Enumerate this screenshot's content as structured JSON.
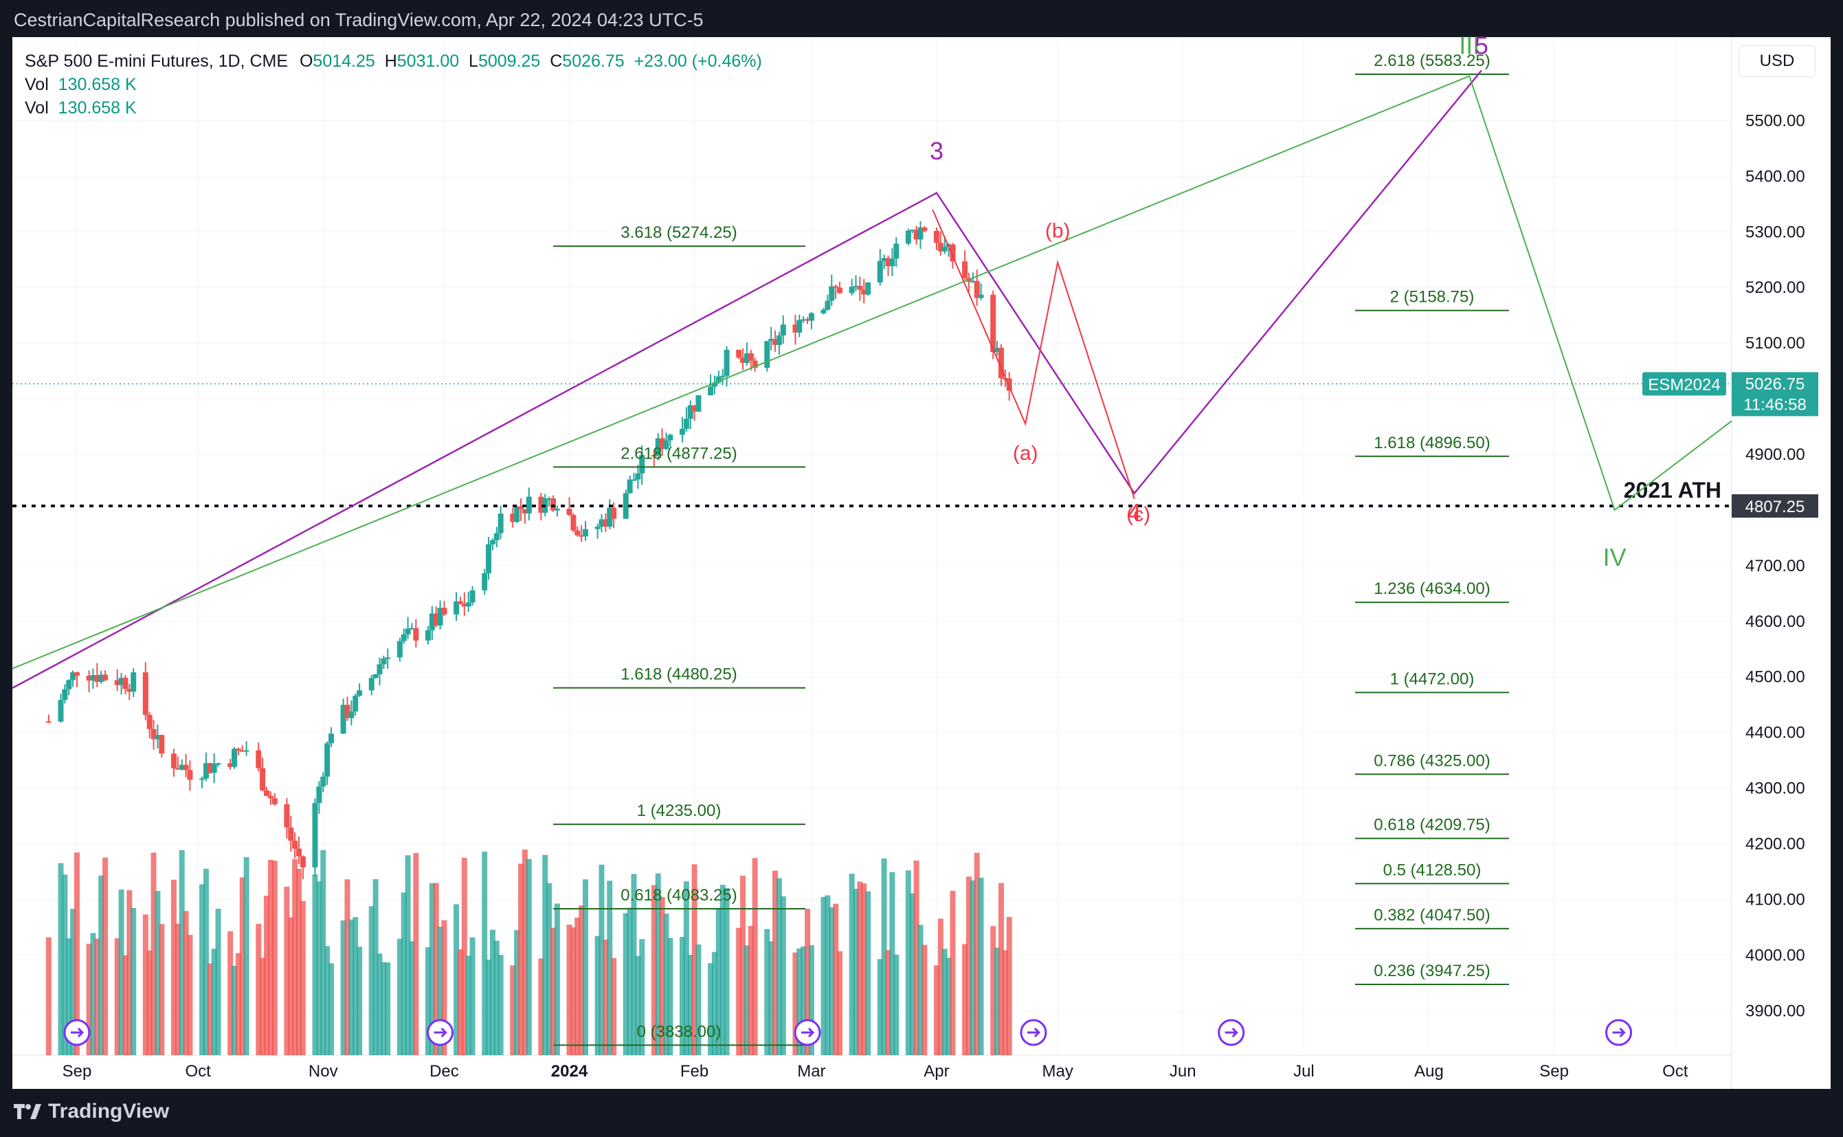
{
  "header": {
    "published_by": "CestrianCapitalResearch published on TradingView.com, Apr 22, 2024 04:23 UTC-5"
  },
  "legend": {
    "title": "S&P 500 E-mini Futures, 1D, CME",
    "o_label": "O",
    "o_value": "5014.25",
    "h_label": "H",
    "h_value": "5031.00",
    "l_label": "L",
    "l_value": "5009.25",
    "c_label": "C",
    "c_value": "5026.75",
    "change": "+23.00 (+0.46%)",
    "vol1_label": "Vol",
    "vol1_value": "130.658 K",
    "vol2_label": "Vol",
    "vol2_value": "130.658 K"
  },
  "currency_button": "USD",
  "footer": {
    "brand": "TradingView"
  },
  "colors": {
    "up": "#26a69a",
    "down": "#ef5350",
    "fib": "#1f6b1f",
    "purple": "#9c27b0",
    "green": "#4caf50",
    "red": "#f23645"
  },
  "chart_data": {
    "type": "candlestick",
    "symbol": "ESM2024",
    "last_price": "5026.75",
    "countdown": "11:46:58",
    "price_axis": {
      "min": 3820,
      "max": 5650,
      "ticks": [
        "3900.00",
        "4000.00",
        "4100.00",
        "4200.00",
        "4300.00",
        "4400.00",
        "4500.00",
        "4600.00",
        "4700.00",
        "4800.00",
        "4900.00",
        "5000.00",
        "5100.00",
        "5200.00",
        "5300.00",
        "5400.00",
        "5500.00"
      ]
    },
    "time_axis": [
      {
        "label": "Sep",
        "date": "2023-09-01"
      },
      {
        "label": "Oct",
        "date": "2023-10-01"
      },
      {
        "label": "Nov",
        "date": "2023-11-01"
      },
      {
        "label": "Dec",
        "date": "2023-12-01"
      },
      {
        "label": "2024",
        "date": "2024-01-01",
        "bold": true
      },
      {
        "label": "Feb",
        "date": "2024-02-01"
      },
      {
        "label": "Mar",
        "date": "2024-03-01"
      },
      {
        "label": "Apr",
        "date": "2024-04-01"
      },
      {
        "label": "May",
        "date": "2024-05-01"
      },
      {
        "label": "Jun",
        "date": "2024-06-01"
      },
      {
        "label": "Jul",
        "date": "2024-07-01"
      },
      {
        "label": "Aug",
        "date": "2024-08-01"
      },
      {
        "label": "Sep",
        "date": "2024-09-01"
      },
      {
        "label": "Oct",
        "date": "2024-10-01"
      }
    ],
    "close_path": [
      [
        "2023-08-25",
        4420
      ],
      [
        "2023-09-01",
        4515
      ],
      [
        "2023-09-08",
        4500
      ],
      [
        "2023-09-15",
        4490
      ],
      [
        "2023-09-22",
        4360
      ],
      [
        "2023-09-29",
        4330
      ],
      [
        "2023-10-06",
        4345
      ],
      [
        "2023-10-13",
        4370
      ],
      [
        "2023-10-20",
        4270
      ],
      [
        "2023-10-27",
        4160
      ],
      [
        "2023-11-03",
        4410
      ],
      [
        "2023-11-10",
        4460
      ],
      [
        "2023-11-17",
        4550
      ],
      [
        "2023-11-24",
        4580
      ],
      [
        "2023-12-01",
        4610
      ],
      [
        "2023-12-08",
        4640
      ],
      [
        "2023-12-15",
        4790
      ],
      [
        "2023-12-22",
        4810
      ],
      [
        "2023-12-29",
        4820
      ],
      [
        "2024-01-05",
        4750
      ],
      [
        "2024-01-12",
        4800
      ],
      [
        "2024-01-19",
        4880
      ],
      [
        "2024-01-26",
        4940
      ],
      [
        "2024-02-02",
        5000
      ],
      [
        "2024-02-09",
        5070
      ],
      [
        "2024-02-16",
        5060
      ],
      [
        "2024-02-23",
        5120
      ],
      [
        "2024-03-01",
        5160
      ],
      [
        "2024-03-08",
        5200
      ],
      [
        "2024-03-15",
        5190
      ],
      [
        "2024-03-22",
        5280
      ],
      [
        "2024-03-29",
        5310
      ],
      [
        "2024-04-05",
        5250
      ],
      [
        "2024-04-12",
        5180
      ],
      [
        "2024-04-19",
        5000
      ],
      [
        "2024-04-22",
        5026.75
      ]
    ],
    "volume_shape": "daily bars, green/red, peaking around 200K",
    "horizontal_line": {
      "price": 4807.25,
      "label": "2021 ATH",
      "value_label": "4807.25"
    },
    "fib_set_1": [
      {
        "label": "3.618 (5274.25)",
        "price": 5274.25
      },
      {
        "label": "2.618 (4877.25)",
        "price": 4877.25
      },
      {
        "label": "1.618 (4480.25)",
        "price": 4480.25
      },
      {
        "label": "1 (4235.00)",
        "price": 4235.0
      },
      {
        "label": "0.618 (4083.25)",
        "price": 4083.25
      },
      {
        "label": "0 (3838.00)",
        "price": 3838.0
      }
    ],
    "fib_set_2": [
      {
        "label": "2.618 (5583.25)",
        "price": 5583.25
      },
      {
        "label": "2 (5158.75)",
        "price": 5158.75
      },
      {
        "label": "1.618 (4896.50)",
        "price": 4896.5
      },
      {
        "label": "1.236 (4634.00)",
        "price": 4634.0
      },
      {
        "label": "1 (4472.00)",
        "price": 4472.0
      },
      {
        "label": "0.786 (4325.00)",
        "price": 4325.0
      },
      {
        "label": "0.618 (4209.75)",
        "price": 4209.75
      },
      {
        "label": "0.5 (4128.50)",
        "price": 4128.5
      },
      {
        "label": "0.382 (4047.50)",
        "price": 4047.5
      },
      {
        "label": "0.236 (3947.25)",
        "price": 3947.25
      }
    ],
    "wave_labels": [
      {
        "text": "3",
        "color": "purple",
        "date": "2024-04-01",
        "price": 5430
      },
      {
        "text": "(b)",
        "color": "red",
        "date": "2024-05-01",
        "price": 5290
      },
      {
        "text": "(a)",
        "color": "red",
        "date": "2024-04-23",
        "price": 4890
      },
      {
        "text": "4",
        "color": "red",
        "date": "2024-05-20",
        "price": 4780
      },
      {
        "text": "(c)",
        "color": "red",
        "date": "2024-05-21",
        "price": 4780
      },
      {
        "text": "III",
        "color": "green",
        "date": "2024-08-11",
        "price": 5620
      },
      {
        "text": "5",
        "color": "purple",
        "date": "2024-08-14",
        "price": 5620
      },
      {
        "text": "IV",
        "color": "green",
        "date": "2024-09-16",
        "price": 4700
      }
    ]
  }
}
